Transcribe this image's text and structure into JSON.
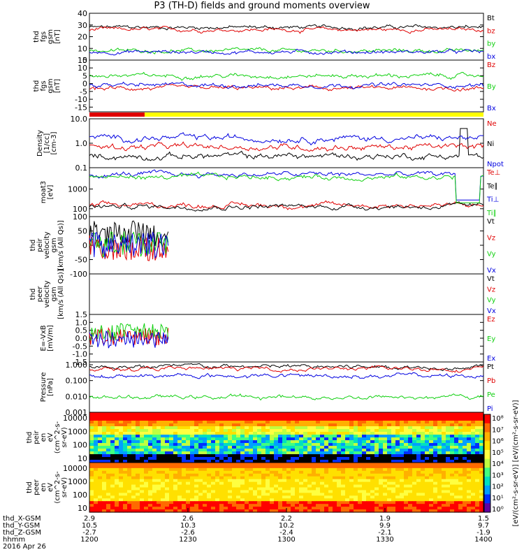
{
  "title": "P3 (TH-D) fields and ground moments overview",
  "colors": {
    "black": "#000000",
    "red": "#e00000",
    "green": "#10d010",
    "blue": "#0000e0",
    "yellow": "#ffff00"
  },
  "footer": {
    "rows": [
      {
        "label": "thd_X-GSM",
        "values": [
          "2.9",
          "2.6",
          "2.2",
          "1.9",
          "1.5"
        ]
      },
      {
        "label": "thd_Y-GSM",
        "values": [
          "10.5",
          "10.3",
          "10.2",
          "9.9",
          "9.7"
        ]
      },
      {
        "label": "thd_Z-GSM",
        "values": [
          "-2.7",
          "-2.6",
          "-2.4",
          "-2.1",
          "-1.9"
        ]
      },
      {
        "label": "hhmm",
        "values": [
          "1200",
          "1230",
          "1300",
          "1330",
          "1400"
        ]
      }
    ],
    "date": "2016 Apr 26"
  },
  "colorbar": {
    "ticks": [
      "10⁸",
      "10⁷",
      "10⁶",
      "10⁵",
      "10⁴",
      "10³",
      "10²",
      "10¹",
      "10⁰"
    ],
    "label": "[eV/(cm²-s-sr-eV)]  [eV/(cm²-s-sr-eV)]"
  },
  "chart_data": [
    {
      "type": "line",
      "id": "bt",
      "ylabel": [
        "thd",
        "fgs",
        "gsm",
        "[nT]"
      ],
      "ylim": [
        0,
        40
      ],
      "yticks": [
        "40",
        "30",
        "20",
        "10",
        "0"
      ],
      "series": [
        {
          "name": "Bt",
          "color": "black",
          "level": 28
        },
        {
          "name": "bz",
          "color": "red",
          "level": 26
        },
        {
          "name": "by",
          "color": "green",
          "level": 8
        },
        {
          "name": "bx",
          "color": "blue",
          "level": 7
        }
      ]
    },
    {
      "type": "line",
      "id": "bcomp",
      "ylabel": [
        "thd",
        "fgs",
        "gsm",
        "[nT]"
      ],
      "ylim": [
        -18,
        15
      ],
      "yticks": [
        "15",
        "10",
        "5",
        "0",
        "-5",
        "-10",
        "-15"
      ],
      "series": [
        {
          "name": "Bz",
          "color": "red",
          "level": -3
        },
        {
          "name": "By",
          "color": "green",
          "level": 5
        },
        {
          "name": "Bx",
          "color": "blue",
          "level": -1
        }
      ]
    },
    {
      "type": "bar",
      "id": "mode",
      "segments": [
        {
          "from": 0,
          "to": 0.14,
          "color": "red"
        },
        {
          "from": 0.14,
          "to": 1,
          "color": "yellow"
        }
      ]
    },
    {
      "type": "line",
      "id": "density",
      "ylabel": [
        "Density",
        "[1/cc]",
        "[cm-3]"
      ],
      "ylim": [
        0.1,
        10
      ],
      "log": true,
      "yticks": [
        "10.0",
        "1.0",
        "0.1"
      ],
      "series": [
        {
          "name": "Ne",
          "color": "red",
          "level": 0.7
        },
        {
          "name": "Ni",
          "color": "black",
          "level": 0.3
        },
        {
          "name": "Npot",
          "color": "blue",
          "level": 1.6
        }
      ]
    },
    {
      "type": "line",
      "id": "temp",
      "ylabel": [
        "moat3",
        "[eV]"
      ],
      "ylim": [
        40,
        12000
      ],
      "log": true,
      "yticks": [
        "1000",
        "100"
      ],
      "series": [
        {
          "name": "Te⊥",
          "color": "red",
          "level": 150
        },
        {
          "name": "Te∥",
          "color": "black",
          "level": 130
        },
        {
          "name": "Ti⊥",
          "color": "blue",
          "level": 5500
        },
        {
          "name": "Ti∥",
          "color": "green",
          "level": 4000
        }
      ]
    },
    {
      "type": "line",
      "id": "peirv",
      "ylabel": [
        "thd",
        "peir",
        "velocity",
        "gsm",
        "[km/s (All Qs)]"
      ],
      "ylim": [
        -100,
        100
      ],
      "yticks": [
        "100",
        "50",
        "0",
        "-50",
        "-100"
      ],
      "xmax": 0.2,
      "series": [
        {
          "name": "Vt",
          "color": "black",
          "level": 40
        },
        {
          "name": "Vz",
          "color": "red",
          "level": -10
        },
        {
          "name": "Vy",
          "color": "green",
          "level": 5
        },
        {
          "name": "Vx",
          "color": "blue",
          "level": 0
        }
      ]
    },
    {
      "type": "line",
      "id": "peerv",
      "ylabel": [
        "thd",
        "peer",
        "velocity",
        "gsm",
        "[km/s (All Qs)]"
      ],
      "ylim": [
        -100,
        100
      ],
      "yticks": [],
      "series": [
        {
          "name": "Vt",
          "color": "black"
        },
        {
          "name": "Vz",
          "color": "red"
        },
        {
          "name": "Vy",
          "color": "green"
        },
        {
          "name": "Vx",
          "color": "blue"
        }
      ]
    },
    {
      "type": "line",
      "id": "efield",
      "ylabel": [
        "E=-VxB",
        "[mV/m]"
      ],
      "ylim": [
        -1.5,
        1.5
      ],
      "yticks": [
        "1.5",
        "1.0",
        "0.5",
        "0.0",
        "-0.5",
        "-1.0",
        "-1.5"
      ],
      "xmax": 0.2,
      "series": [
        {
          "name": "Ez",
          "color": "red",
          "level": 0.1
        },
        {
          "name": "Ey",
          "color": "green",
          "level": 0.4
        },
        {
          "name": "Ex",
          "color": "blue",
          "level": -0.1
        }
      ]
    },
    {
      "type": "line",
      "id": "pressure",
      "ylabel": [
        "Pressure",
        "[nPa]"
      ],
      "ylim": [
        0.001,
        1.5
      ],
      "log": true,
      "yticks": [
        "1.000",
        "0.100",
        "0.010",
        "0.001"
      ],
      "series": [
        {
          "name": "Pt",
          "color": "black",
          "level": 0.75
        },
        {
          "name": "Pb",
          "color": "red",
          "level": 0.55
        },
        {
          "name": "Pe",
          "color": "green",
          "level": 0.009
        },
        {
          "name": "Pi",
          "color": "blue",
          "level": 0.2
        }
      ]
    },
    {
      "type": "heatmap",
      "id": "peirspec",
      "ylabel": [
        "thd",
        "peir",
        "en",
        "eV",
        "(cm^2-s-",
        "sr-eV)"
      ],
      "yticks": [
        "10000",
        "1000",
        "100",
        "10"
      ]
    },
    {
      "type": "heatmap",
      "id": "peerspec",
      "ylabel": [
        "thd",
        "peer",
        "en",
        "eV",
        "(cm^2-s-",
        "sr-eV)"
      ],
      "yticks": [
        "10000",
        "1000",
        "100",
        "10"
      ]
    }
  ]
}
